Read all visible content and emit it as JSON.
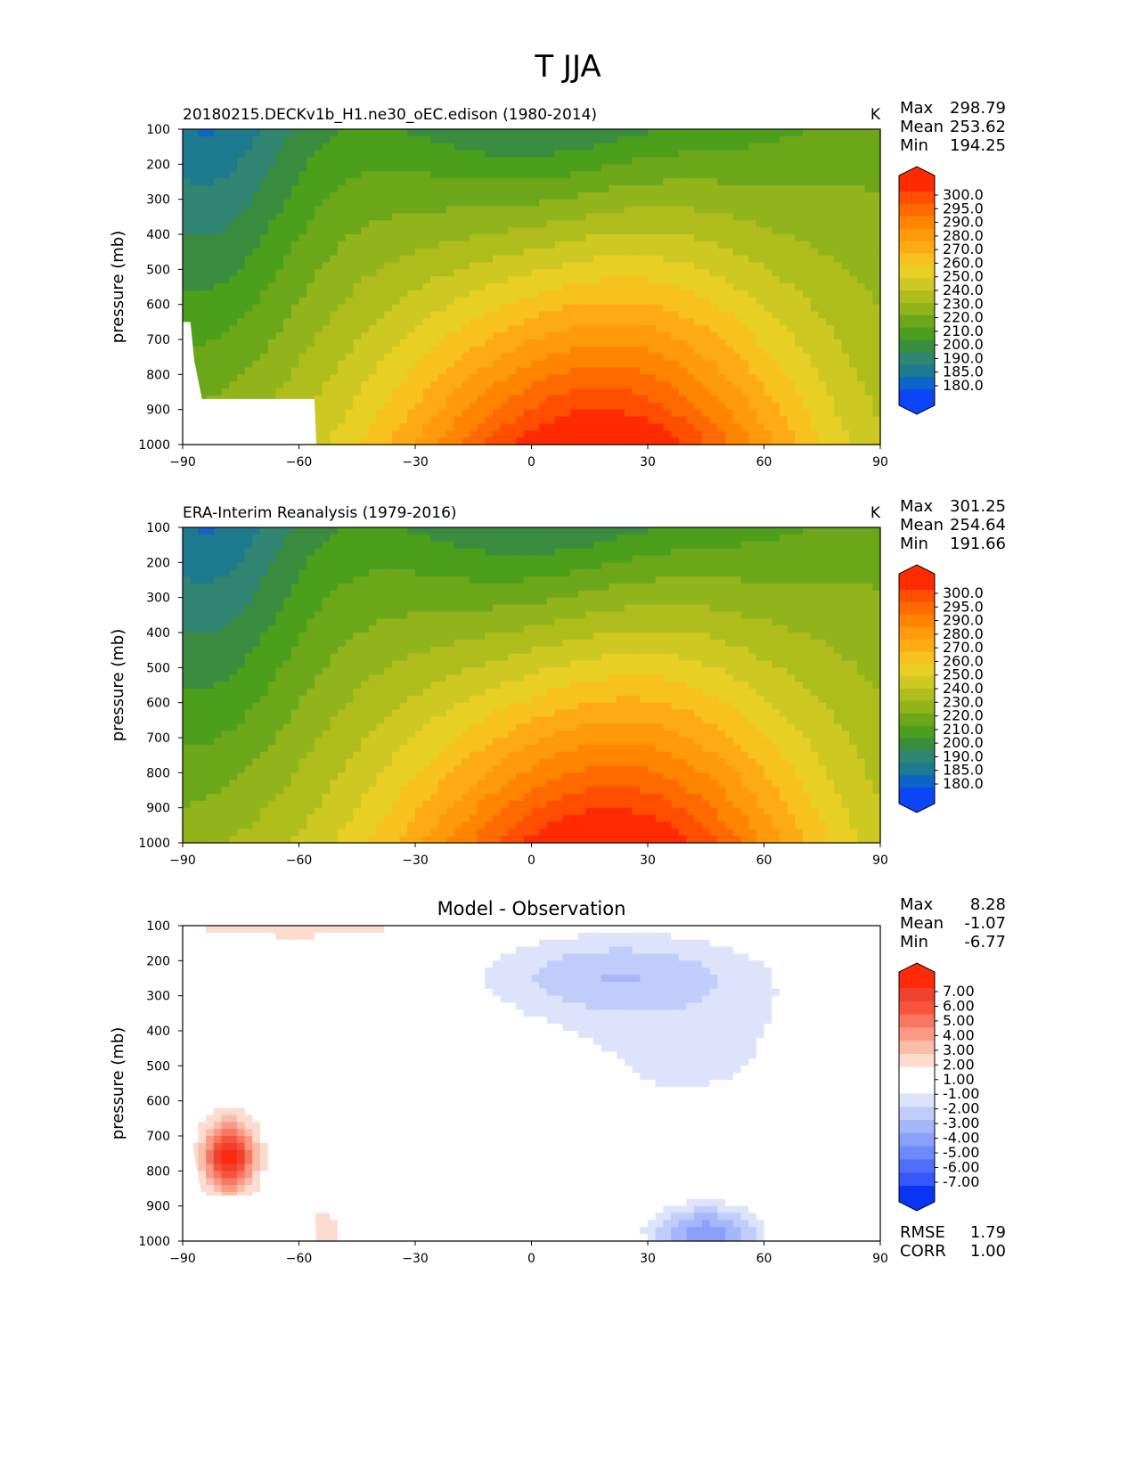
{
  "figure": {
    "title": "T JJA"
  },
  "chart_data": [
    {
      "type": "heatmap",
      "title": "20180215.DECKv1b_H1.ne30_oEC.edison (1980-2014)",
      "units": "K",
      "ylabel": "pressure (mb)",
      "xlabel": "",
      "xlim": [
        -90,
        90
      ],
      "ylim": [
        1000,
        100
      ],
      "y_inverted": true,
      "xticks": [
        "−90",
        "−60",
        "−30",
        "0",
        "30",
        "60",
        "90"
      ],
      "yticks": [
        "100",
        "200",
        "300",
        "400",
        "500",
        "600",
        "700",
        "800",
        "900",
        "1000"
      ],
      "stats": [
        {
          "label": "Max",
          "value": "298.79"
        },
        {
          "label": "Mean",
          "value": "253.62"
        },
        {
          "label": "Min",
          "value": "194.25"
        }
      ],
      "colorbar": {
        "labels": [
          "300.0",
          "295.0",
          "290.0",
          "280.0",
          "270.0",
          "260.0",
          "250.0",
          "240.0",
          "230.0",
          "220.0",
          "210.0",
          "200.0",
          "190.0",
          "185.0",
          "180.0"
        ],
        "colors": [
          "#ff2a00",
          "#ff4e00",
          "#ff6a00",
          "#ff8500",
          "#ff9a0a",
          "#fdaa14",
          "#f7c21d",
          "#e8cf24",
          "#cdc822",
          "#afbd1c",
          "#90b41a",
          "#6ca71a",
          "#4c9f1b",
          "#3a8c3e",
          "#308573",
          "#1e7a8e",
          "#0d64c9",
          "#0a46f5"
        ],
        "extend": "both"
      },
      "summary": "Warmest (~295-299 K) near 1000 mb between 0 and 30N; coldest (~195-205 K) near 100 mb at high southern latitudes and near the equator; masked topography region near 60-90S below ~650 mb."
    },
    {
      "type": "heatmap",
      "title": "ERA-Interim Reanalysis (1979-2016)",
      "units": "K",
      "ylabel": "pressure (mb)",
      "xlabel": "",
      "xlim": [
        -90,
        90
      ],
      "ylim": [
        1000,
        100
      ],
      "y_inverted": true,
      "xticks": [
        "−90",
        "−60",
        "−30",
        "0",
        "30",
        "60",
        "90"
      ],
      "yticks": [
        "100",
        "200",
        "300",
        "400",
        "500",
        "600",
        "700",
        "800",
        "900",
        "1000"
      ],
      "stats": [
        {
          "label": "Max",
          "value": "301.25"
        },
        {
          "label": "Mean",
          "value": "254.64"
        },
        {
          "label": "Min",
          "value": "191.66"
        }
      ],
      "colorbar": {
        "labels": [
          "300.0",
          "295.0",
          "290.0",
          "280.0",
          "270.0",
          "260.0",
          "250.0",
          "240.0",
          "230.0",
          "220.0",
          "210.0",
          "200.0",
          "190.0",
          "185.0",
          "180.0"
        ],
        "colors": [
          "#ff2a00",
          "#ff4e00",
          "#ff6a00",
          "#ff8500",
          "#ff9a0a",
          "#fdaa14",
          "#f7c21d",
          "#e8cf24",
          "#cdc822",
          "#afbd1c",
          "#90b41a",
          "#6ca71a",
          "#4c9f1b",
          "#3a8c3e",
          "#308573",
          "#1e7a8e",
          "#0d64c9",
          "#0a46f5"
        ],
        "extend": "both"
      },
      "summary": "Similar structure to model; warmest (~300 K) near 1000 mb around 20N."
    },
    {
      "type": "heatmap",
      "title": "Model - Observation",
      "units": "",
      "ylabel": "pressure (mb)",
      "xlabel": "",
      "xlim": [
        -90,
        90
      ],
      "ylim": [
        1000,
        100
      ],
      "y_inverted": true,
      "xticks": [
        "−90",
        "−60",
        "−30",
        "0",
        "30",
        "60",
        "90"
      ],
      "yticks": [
        "100",
        "200",
        "300",
        "400",
        "500",
        "600",
        "700",
        "800",
        "900",
        "1000"
      ],
      "stats": [
        {
          "label": "Max",
          "value": "8.28"
        },
        {
          "label": "Mean",
          "value": "-1.07"
        },
        {
          "label": "Min",
          "value": "-6.77"
        }
      ],
      "extra_stats": [
        {
          "label": "RMSE",
          "value": "1.79"
        },
        {
          "label": "CORR",
          "value": "1.00"
        }
      ],
      "colorbar": {
        "labels": [
          "7.00",
          "6.00",
          "5.00",
          "4.00",
          "3.00",
          "2.00",
          "1.00",
          "-1.00",
          "-2.00",
          "-3.00",
          "-4.00",
          "-5.00",
          "-6.00",
          "-7.00"
        ],
        "colors": [
          "#fe2a0a",
          "#f04030",
          "#f8543d",
          "#fa7660",
          "#fb9a84",
          "#fcbcaa",
          "#fddcd0",
          "#fefefe",
          "#fefefe",
          "#dde3fb",
          "#c0cdfb",
          "#a5b6fb",
          "#8aa0fb",
          "#6d89fb",
          "#5070fb",
          "#3557fb",
          "#0a34f5"
        ],
        "extend": "both"
      },
      "summary": "Positive bias (up to ~8 K) near 80S between 600-870 mb; negative bias (-1 to -7 K) over tropics/northern midlatitudes near 200-300 mb and near the surface 20-65N."
    }
  ]
}
